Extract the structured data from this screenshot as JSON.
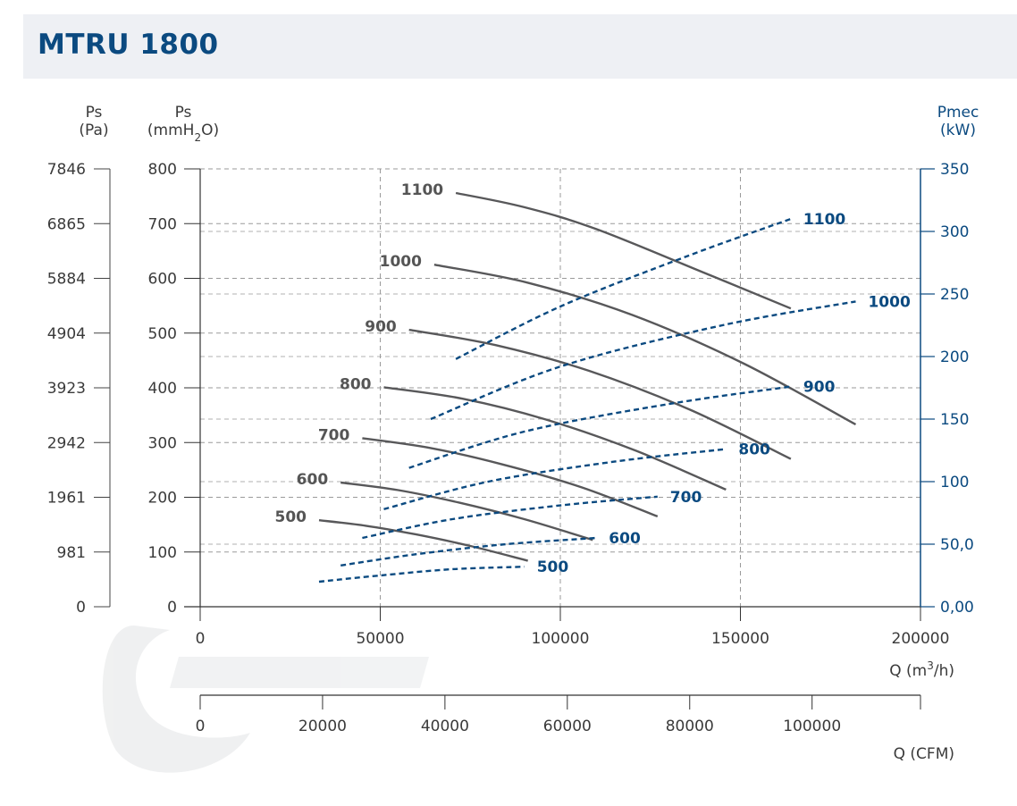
{
  "title": "MTRU 1800",
  "chart_data": {
    "type": "line",
    "axes": {
      "ps_pa": {
        "label_top": "Ps",
        "label_bottom": "(Pa)",
        "ticks": [
          "7846",
          "6865",
          "5884",
          "4904",
          "3923",
          "2942",
          "1961",
          "981",
          "0"
        ]
      },
      "ps_mmh2o": {
        "label_top": "Ps",
        "label_bottom_prefix": "(mmH",
        "label_bottom_sub": "2",
        "label_bottom_suffix": "O)",
        "ylim": [
          0,
          800
        ],
        "ticks": [
          "800",
          "700",
          "600",
          "500",
          "400",
          "300",
          "200",
          "100",
          "0"
        ]
      },
      "pmec": {
        "label_top": "Pmec",
        "label_bottom": "(kW)",
        "ylim": [
          0,
          350
        ],
        "ticks": [
          "350",
          "300",
          "250",
          "200",
          "150",
          "100",
          "50,0",
          "0,00"
        ]
      },
      "q_m3h": {
        "label_prefix": "Q (m",
        "label_sup": "3",
        "label_suffix": "/h)",
        "xlim": [
          0,
          200000
        ],
        "ticks": [
          "0",
          "50000",
          "100000",
          "150000",
          "200000"
        ]
      },
      "q_cfm": {
        "label": "Q (CFM)",
        "ticks": [
          "0",
          "20000",
          "40000",
          "60000",
          "80000",
          "100000"
        ]
      }
    },
    "pressure_series": [
      {
        "name": "500",
        "x": [
          33000,
          46000,
          60000,
          75000,
          91000
        ],
        "y": [
          158,
          148,
          132,
          111,
          84
        ]
      },
      {
        "name": "600",
        "x": [
          39000,
          55000,
          72000,
          90000,
          109000
        ],
        "y": [
          227,
          213,
          190,
          160,
          122
        ]
      },
      {
        "name": "700",
        "x": [
          45000,
          64000,
          84000,
          106000,
          127000
        ],
        "y": [
          308,
          290,
          260,
          218,
          165
        ]
      },
      {
        "name": "800",
        "x": [
          51000,
          73000,
          96000,
          121000,
          146000
        ],
        "y": [
          401,
          380,
          342,
          285,
          214
        ]
      },
      {
        "name": "900",
        "x": [
          58000,
          82000,
          108000,
          136000,
          164000
        ],
        "y": [
          506,
          478,
          431,
          360,
          270
        ]
      },
      {
        "name": "1000",
        "x": [
          65000,
          91000,
          120000,
          151000,
          182000
        ],
        "y": [
          625,
          592,
          533,
          444,
          333
        ]
      },
      {
        "name": "1100",
        "x": [
          71000,
          90000,
          110000,
          140000,
          164000
        ],
        "y": [
          756,
          730,
          690,
          610,
          545
        ]
      }
    ],
    "power_series": [
      {
        "name": "500",
        "x": [
          33000,
          50000,
          70000,
          90000
        ],
        "y": [
          20,
          25,
          30,
          32
        ]
      },
      {
        "name": "600",
        "x": [
          39000,
          60000,
          85000,
          110000
        ],
        "y": [
          33,
          42,
          50,
          55
        ]
      },
      {
        "name": "700",
        "x": [
          45000,
          70000,
          100000,
          127000
        ],
        "y": [
          55,
          70,
          81,
          88
        ]
      },
      {
        "name": "800",
        "x": [
          51000,
          80000,
          115000,
          146000
        ],
        "y": [
          78,
          100,
          116,
          126
        ]
      },
      {
        "name": "900",
        "x": [
          58000,
          90000,
          130000,
          164000
        ],
        "y": [
          111,
          140,
          162,
          176
        ]
      },
      {
        "name": "1000",
        "x": [
          64000,
          100000,
          145000,
          182000
        ],
        "y": [
          150,
          192,
          225,
          244
        ]
      },
      {
        "name": "1100",
        "x": [
          71000,
          100000,
          135000,
          164000
        ],
        "y": [
          198,
          240,
          280,
          310
        ]
      }
    ]
  }
}
